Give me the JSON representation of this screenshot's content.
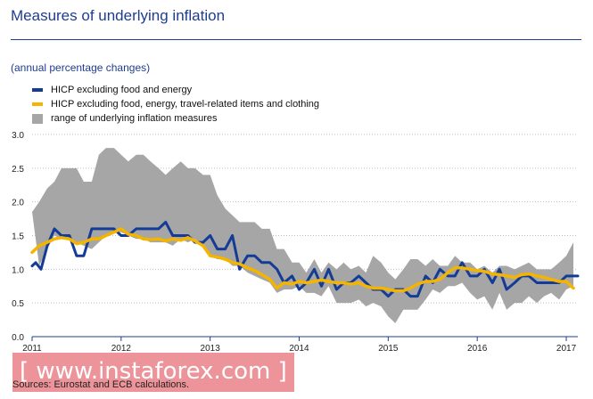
{
  "header": {
    "title": "Measures of underlying inflation",
    "subtitle": "(annual percentage changes)"
  },
  "legend": [
    {
      "label": "HICP excluding food and energy",
      "color": "#143c96",
      "kind": "line"
    },
    {
      "label": "HICP excluding food, energy, travel-related items and clothing",
      "color": "#f5b400",
      "kind": "line"
    },
    {
      "label": "range of underlying inflation measures",
      "color": "#a6a6a6",
      "kind": "box"
    }
  ],
  "footer": {
    "source": "Sources: Eurostat and ECB calculations.",
    "watermark": "[ www.instaforex.com ]"
  },
  "chart_data": {
    "type": "line",
    "title": "Measures of underlying inflation",
    "subtitle": "(annual percentage changes)",
    "ylim": [
      0,
      3
    ],
    "yticks": [
      0.0,
      0.5,
      1.0,
      1.5,
      2.0,
      2.5,
      3.0
    ],
    "ytick_labels": [
      "0.0",
      "0.5",
      "1.0",
      "1.5",
      "2.0",
      "2.5",
      "3.0"
    ],
    "xlim": [
      2011,
      2017.13
    ],
    "xticks": [
      2011,
      2012,
      2013,
      2014,
      2015,
      2016,
      2017
    ],
    "xtick_labels": [
      "2011",
      "2012",
      "2013",
      "2014",
      "2015",
      "2016",
      "2017"
    ],
    "grid": true,
    "band": {
      "name": "range of underlying inflation measures",
      "color": "#a6a6a6",
      "upper": [
        [
          2011.0,
          1.85
        ],
        [
          2011.08,
          2.0
        ],
        [
          2011.17,
          2.2
        ],
        [
          2011.25,
          2.3
        ],
        [
          2011.33,
          2.5
        ],
        [
          2011.42,
          2.5
        ],
        [
          2011.5,
          2.5
        ],
        [
          2011.58,
          2.3
        ],
        [
          2011.67,
          2.3
        ],
        [
          2011.75,
          2.7
        ],
        [
          2011.83,
          2.8
        ],
        [
          2011.92,
          2.8
        ],
        [
          2012.0,
          2.7
        ],
        [
          2012.08,
          2.6
        ],
        [
          2012.17,
          2.7
        ],
        [
          2012.25,
          2.7
        ],
        [
          2012.33,
          2.6
        ],
        [
          2012.42,
          2.5
        ],
        [
          2012.5,
          2.4
        ],
        [
          2012.58,
          2.5
        ],
        [
          2012.67,
          2.6
        ],
        [
          2012.75,
          2.5
        ],
        [
          2012.83,
          2.5
        ],
        [
          2012.92,
          2.4
        ],
        [
          2013.0,
          2.4
        ],
        [
          2013.08,
          2.1
        ],
        [
          2013.17,
          1.9
        ],
        [
          2013.25,
          1.8
        ],
        [
          2013.33,
          1.7
        ],
        [
          2013.42,
          1.7
        ],
        [
          2013.5,
          1.7
        ],
        [
          2013.58,
          1.6
        ],
        [
          2013.67,
          1.6
        ],
        [
          2013.75,
          1.3
        ],
        [
          2013.83,
          1.3
        ],
        [
          2013.92,
          1.1
        ],
        [
          2014.0,
          1.1
        ],
        [
          2014.08,
          0.95
        ],
        [
          2014.17,
          1.15
        ],
        [
          2014.25,
          0.95
        ],
        [
          2014.33,
          1.1
        ],
        [
          2014.42,
          1.0
        ],
        [
          2014.5,
          1.1
        ],
        [
          2014.58,
          1.0
        ],
        [
          2014.67,
          1.05
        ],
        [
          2014.75,
          0.95
        ],
        [
          2014.83,
          1.2
        ],
        [
          2014.92,
          1.1
        ],
        [
          2015.0,
          0.95
        ],
        [
          2015.08,
          0.85
        ],
        [
          2015.17,
          1.0
        ],
        [
          2015.25,
          1.15
        ],
        [
          2015.33,
          1.15
        ],
        [
          2015.42,
          1.05
        ],
        [
          2015.5,
          1.15
        ],
        [
          2015.58,
          1.05
        ],
        [
          2015.67,
          1.05
        ],
        [
          2015.75,
          1.2
        ],
        [
          2015.83,
          1.1
        ],
        [
          2015.92,
          1.1
        ],
        [
          2016.0,
          1.0
        ],
        [
          2016.08,
          1.05
        ],
        [
          2016.17,
          0.95
        ],
        [
          2016.25,
          1.05
        ],
        [
          2016.33,
          1.05
        ],
        [
          2016.42,
          1.0
        ],
        [
          2016.5,
          1.05
        ],
        [
          2016.58,
          1.1
        ],
        [
          2016.67,
          1.0
        ],
        [
          2016.75,
          1.0
        ],
        [
          2016.83,
          1.0
        ],
        [
          2016.92,
          1.1
        ],
        [
          2017.0,
          1.2
        ],
        [
          2017.08,
          1.4
        ]
      ],
      "lower": [
        [
          2011.08,
          1.05
        ],
        [
          2011.17,
          1.3
        ],
        [
          2011.25,
          1.5
        ],
        [
          2011.33,
          1.45
        ],
        [
          2011.42,
          1.45
        ],
        [
          2011.5,
          1.4
        ],
        [
          2011.58,
          1.35
        ],
        [
          2011.67,
          1.3
        ],
        [
          2011.75,
          1.4
        ],
        [
          2011.83,
          1.5
        ],
        [
          2011.92,
          1.55
        ],
        [
          2012.0,
          1.55
        ],
        [
          2012.08,
          1.5
        ],
        [
          2012.17,
          1.45
        ],
        [
          2012.25,
          1.45
        ],
        [
          2012.33,
          1.4
        ],
        [
          2012.42,
          1.4
        ],
        [
          2012.5,
          1.4
        ],
        [
          2012.58,
          1.35
        ],
        [
          2012.67,
          1.45
        ],
        [
          2012.75,
          1.4
        ],
        [
          2012.83,
          1.45
        ],
        [
          2012.92,
          1.35
        ],
        [
          2013.0,
          1.2
        ],
        [
          2013.08,
          1.15
        ],
        [
          2013.17,
          1.15
        ],
        [
          2013.25,
          1.05
        ],
        [
          2013.33,
          1.05
        ],
        [
          2013.42,
          0.95
        ],
        [
          2013.5,
          0.9
        ],
        [
          2013.58,
          0.85
        ],
        [
          2013.67,
          0.8
        ],
        [
          2013.75,
          0.65
        ],
        [
          2013.83,
          0.7
        ],
        [
          2013.92,
          0.7
        ],
        [
          2014.0,
          0.75
        ],
        [
          2014.08,
          0.65
        ],
        [
          2014.17,
          0.65
        ],
        [
          2014.25,
          0.6
        ],
        [
          2014.33,
          0.75
        ],
        [
          2014.42,
          0.5
        ],
        [
          2014.5,
          0.5
        ],
        [
          2014.58,
          0.5
        ],
        [
          2014.67,
          0.55
        ],
        [
          2014.75,
          0.45
        ],
        [
          2014.83,
          0.5
        ],
        [
          2014.92,
          0.45
        ],
        [
          2015.0,
          0.3
        ],
        [
          2015.08,
          0.2
        ],
        [
          2015.17,
          0.4
        ],
        [
          2015.25,
          0.4
        ],
        [
          2015.33,
          0.4
        ],
        [
          2015.42,
          0.55
        ],
        [
          2015.5,
          0.7
        ],
        [
          2015.58,
          0.65
        ],
        [
          2015.67,
          0.75
        ],
        [
          2015.75,
          0.75
        ],
        [
          2015.83,
          0.8
        ],
        [
          2015.92,
          0.65
        ],
        [
          2016.0,
          0.55
        ],
        [
          2016.08,
          0.6
        ],
        [
          2016.17,
          0.4
        ],
        [
          2016.25,
          0.65
        ],
        [
          2016.33,
          0.4
        ],
        [
          2016.42,
          0.5
        ],
        [
          2016.5,
          0.5
        ],
        [
          2016.58,
          0.6
        ],
        [
          2016.67,
          0.5
        ],
        [
          2016.75,
          0.6
        ],
        [
          2016.83,
          0.65
        ],
        [
          2016.92,
          0.55
        ],
        [
          2017.0,
          0.7
        ],
        [
          2017.08,
          0.75
        ]
      ]
    },
    "series": [
      {
        "name": "HICP excluding food and energy",
        "color": "#143c96",
        "points": [
          [
            2011.0,
            1.05
          ],
          [
            2011.04,
            1.1
          ],
          [
            2011.1,
            1.0
          ],
          [
            2011.17,
            1.35
          ],
          [
            2011.25,
            1.6
          ],
          [
            2011.33,
            1.5
          ],
          [
            2011.42,
            1.5
          ],
          [
            2011.5,
            1.2
          ],
          [
            2011.58,
            1.2
          ],
          [
            2011.67,
            1.6
          ],
          [
            2011.75,
            1.6
          ],
          [
            2011.83,
            1.6
          ],
          [
            2011.92,
            1.6
          ],
          [
            2012.0,
            1.5
          ],
          [
            2012.08,
            1.5
          ],
          [
            2012.17,
            1.6
          ],
          [
            2012.25,
            1.6
          ],
          [
            2012.33,
            1.6
          ],
          [
            2012.42,
            1.6
          ],
          [
            2012.5,
            1.7
          ],
          [
            2012.58,
            1.5
          ],
          [
            2012.67,
            1.5
          ],
          [
            2012.75,
            1.5
          ],
          [
            2012.83,
            1.4
          ],
          [
            2012.92,
            1.4
          ],
          [
            2013.0,
            1.5
          ],
          [
            2013.08,
            1.3
          ],
          [
            2013.17,
            1.3
          ],
          [
            2013.25,
            1.5
          ],
          [
            2013.33,
            1.0
          ],
          [
            2013.42,
            1.2
          ],
          [
            2013.5,
            1.2
          ],
          [
            2013.58,
            1.1
          ],
          [
            2013.67,
            1.1
          ],
          [
            2013.75,
            1.0
          ],
          [
            2013.83,
            0.8
          ],
          [
            2013.92,
            0.9
          ],
          [
            2014.0,
            0.7
          ],
          [
            2014.08,
            0.8
          ],
          [
            2014.17,
            1.0
          ],
          [
            2014.25,
            0.75
          ],
          [
            2014.33,
            1.0
          ],
          [
            2014.42,
            0.7
          ],
          [
            2014.5,
            0.8
          ],
          [
            2014.58,
            0.8
          ],
          [
            2014.67,
            0.9
          ],
          [
            2014.75,
            0.8
          ],
          [
            2014.83,
            0.7
          ],
          [
            2014.92,
            0.7
          ],
          [
            2015.0,
            0.6
          ],
          [
            2015.08,
            0.7
          ],
          [
            2015.17,
            0.7
          ],
          [
            2015.25,
            0.6
          ],
          [
            2015.33,
            0.6
          ],
          [
            2015.42,
            0.9
          ],
          [
            2015.5,
            0.8
          ],
          [
            2015.58,
            1.0
          ],
          [
            2015.67,
            0.9
          ],
          [
            2015.75,
            0.9
          ],
          [
            2015.83,
            1.1
          ],
          [
            2015.92,
            0.9
          ],
          [
            2016.0,
            0.9
          ],
          [
            2016.08,
            1.0
          ],
          [
            2016.17,
            0.8
          ],
          [
            2016.25,
            1.0
          ],
          [
            2016.33,
            0.7
          ],
          [
            2016.42,
            0.8
          ],
          [
            2016.5,
            0.9
          ],
          [
            2016.58,
            0.9
          ],
          [
            2016.67,
            0.8
          ],
          [
            2016.75,
            0.8
          ],
          [
            2016.83,
            0.8
          ],
          [
            2016.92,
            0.8
          ],
          [
            2017.0,
            0.9
          ],
          [
            2017.08,
            0.9
          ],
          [
            2017.13,
            0.9
          ]
        ]
      },
      {
        "name": "HICP excluding food, energy, travel-related items and clothing",
        "color": "#f5b400",
        "points": [
          [
            2011.0,
            1.25
          ],
          [
            2011.08,
            1.35
          ],
          [
            2011.17,
            1.4
          ],
          [
            2011.25,
            1.45
          ],
          [
            2011.33,
            1.47
          ],
          [
            2011.42,
            1.45
          ],
          [
            2011.5,
            1.38
          ],
          [
            2011.58,
            1.4
          ],
          [
            2011.67,
            1.45
          ],
          [
            2011.75,
            1.45
          ],
          [
            2011.83,
            1.5
          ],
          [
            2011.92,
            1.55
          ],
          [
            2012.0,
            1.6
          ],
          [
            2012.08,
            1.52
          ],
          [
            2012.17,
            1.5
          ],
          [
            2012.25,
            1.45
          ],
          [
            2012.33,
            1.44
          ],
          [
            2012.42,
            1.45
          ],
          [
            2012.5,
            1.42
          ],
          [
            2012.58,
            1.45
          ],
          [
            2012.67,
            1.43
          ],
          [
            2012.75,
            1.47
          ],
          [
            2012.83,
            1.42
          ],
          [
            2012.92,
            1.35
          ],
          [
            2013.0,
            1.2
          ],
          [
            2013.08,
            1.18
          ],
          [
            2013.17,
            1.15
          ],
          [
            2013.25,
            1.1
          ],
          [
            2013.33,
            1.08
          ],
          [
            2013.42,
            1.02
          ],
          [
            2013.5,
            0.98
          ],
          [
            2013.58,
            0.92
          ],
          [
            2013.67,
            0.85
          ],
          [
            2013.75,
            0.72
          ],
          [
            2013.83,
            0.8
          ],
          [
            2013.92,
            0.78
          ],
          [
            2014.0,
            0.82
          ],
          [
            2014.08,
            0.8
          ],
          [
            2014.17,
            0.82
          ],
          [
            2014.25,
            0.84
          ],
          [
            2014.33,
            0.82
          ],
          [
            2014.42,
            0.8
          ],
          [
            2014.5,
            0.8
          ],
          [
            2014.58,
            0.78
          ],
          [
            2014.67,
            0.8
          ],
          [
            2014.75,
            0.75
          ],
          [
            2014.83,
            0.72
          ],
          [
            2014.92,
            0.72
          ],
          [
            2015.0,
            0.7
          ],
          [
            2015.08,
            0.68
          ],
          [
            2015.17,
            0.68
          ],
          [
            2015.25,
            0.72
          ],
          [
            2015.33,
            0.78
          ],
          [
            2015.42,
            0.82
          ],
          [
            2015.5,
            0.82
          ],
          [
            2015.58,
            0.85
          ],
          [
            2015.67,
            0.95
          ],
          [
            2015.75,
            1.02
          ],
          [
            2015.83,
            1.02
          ],
          [
            2015.92,
            1.0
          ],
          [
            2016.0,
            0.98
          ],
          [
            2016.08,
            0.97
          ],
          [
            2016.17,
            0.93
          ],
          [
            2016.25,
            0.92
          ],
          [
            2016.33,
            0.9
          ],
          [
            2016.42,
            0.88
          ],
          [
            2016.5,
            0.92
          ],
          [
            2016.58,
            0.93
          ],
          [
            2016.67,
            0.9
          ],
          [
            2016.75,
            0.88
          ],
          [
            2016.83,
            0.85
          ],
          [
            2016.92,
            0.82
          ],
          [
            2017.0,
            0.82
          ],
          [
            2017.08,
            0.72
          ]
        ]
      }
    ],
    "gridline_color": "#b9bdd0",
    "axis_color": "#1f3d8f"
  }
}
